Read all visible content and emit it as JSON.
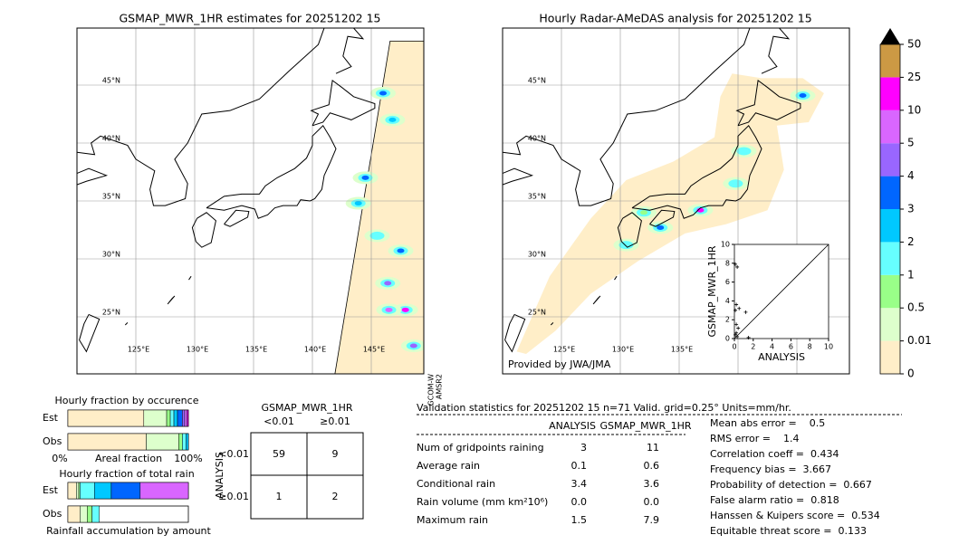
{
  "maps": [
    {
      "title": "GSMAP_MWR_1HR estimates for 20251202 15",
      "lat_labels": [
        "45°N",
        "40°N",
        "35°N",
        "30°N",
        "25°N"
      ],
      "lon_labels": [
        "125°E",
        "130°E",
        "135°E",
        "140°E",
        "145°E"
      ],
      "sensor_label": [
        "GCOM-W",
        "AMSR2"
      ]
    },
    {
      "title": "Hourly Radar-AMeDAS analysis for 20251202 15",
      "lat_labels": [
        "45°N",
        "40°N",
        "35°N",
        "30°N",
        "25°N"
      ],
      "lon_labels": [
        "125°E",
        "130°E",
        "135°E"
      ],
      "credit": "Provided by JWA/JMA"
    }
  ],
  "chart_data": [
    {
      "type": "colorbar",
      "ticks": [
        0,
        0.01,
        0.5,
        1,
        2,
        3,
        4,
        5,
        10,
        25,
        50
      ],
      "colors": [
        "#ffeec8",
        "#ddffcc",
        "#99ff88",
        "#66ffff",
        "#00c8ff",
        "#0066ff",
        "#9966ff",
        "#d966ff",
        "#ff00ff",
        "#cc9944"
      ],
      "extend_color": "#000000"
    },
    {
      "type": "scatter",
      "xlabel": "ANALYSIS",
      "ylabel": "GSMAP_MWR_1HR",
      "xlim": [
        0,
        10
      ],
      "ylim": [
        0,
        10
      ],
      "xticks": [
        0,
        2,
        4,
        6,
        8,
        10
      ],
      "yticks": [
        0,
        2,
        4,
        6,
        8,
        10
      ],
      "x": [
        0.1,
        0.3,
        0.2,
        0.1,
        0.5,
        1.2,
        0.2,
        0.4,
        0.1,
        0.3,
        1.5,
        0.2
      ],
      "y": [
        7.9,
        7.6,
        3.6,
        3.0,
        3.2,
        2.8,
        1.5,
        1.1,
        0.4,
        0.2,
        0.1,
        0.6
      ]
    },
    {
      "type": "stacked-bar",
      "title": "Hourly fraction by occurence",
      "categories": [
        "Est",
        "Obs"
      ],
      "xlabel": "Areal fraction",
      "xlim": [
        0,
        100
      ],
      "xticks": [
        {
          "value": 0,
          "label": "0%"
        },
        {
          "value": 100,
          "label": "100%"
        }
      ],
      "colors": [
        "#ffeec8",
        "#ddffcc",
        "#99ff88",
        "#66ffff",
        "#00c8ff",
        "#0066ff",
        "#9966ff",
        "#d966ff",
        "#ff00ff"
      ],
      "values": [
        [
          63,
          19,
          3,
          3,
          3,
          4,
          2,
          2,
          1
        ],
        [
          65,
          27,
          3,
          3,
          2
        ]
      ]
    },
    {
      "type": "stacked-bar",
      "title": "Hourly fraction of total rain",
      "categories": [
        "Est",
        "Obs"
      ],
      "xlabel": "Rainfall accumulation by amount",
      "xlim": [
        0,
        100
      ],
      "colors": [
        "#ffeec8",
        "#ddffcc",
        "#99ff88",
        "#66ffff",
        "#00c8ff",
        "#0066ff",
        "#9966ff",
        "#d966ff",
        "#ff00ff"
      ],
      "values": [
        [
          7,
          2,
          1,
          12,
          14,
          24,
          0,
          40
        ],
        [
          10,
          6,
          4,
          6
        ]
      ]
    }
  ],
  "contingency": {
    "title": "GSMAP_MWR_1HR",
    "col_labels": [
      "<0.01",
      "≥0.01"
    ],
    "row_title": "ANALYSIS",
    "row_labels": [
      "<0.01",
      "≥0.01"
    ],
    "cells": [
      [
        "59",
        "9"
      ],
      [
        "1",
        "2"
      ]
    ]
  },
  "stats": {
    "header": "Validation statistics for 20251202 15  n=71 Valid. grid=0.25° Units=mm/hr.",
    "columns": [
      "ANALYSIS",
      "GSMAP_MWR_1HR"
    ],
    "rows": [
      [
        "Num of gridpoints raining",
        "3",
        "11"
      ],
      [
        "Average rain",
        "0.1",
        "0.6"
      ],
      [
        "Conditional rain",
        "3.4",
        "3.6"
      ],
      [
        "Rain volume (mm km²10⁶)",
        "0.0",
        "0.0"
      ],
      [
        "Maximum rain",
        "1.5",
        "7.9"
      ]
    ],
    "scores": [
      "Mean abs error =    0.5",
      "RMS error =    1.4",
      "Correlation coeff =  0.434",
      "Frequency bias =  3.667",
      "Probability of detection =  0.667",
      "False alarm ratio =  0.818",
      "Hanssen & Kuipers score =  0.534",
      "Equitable threat score =  0.133"
    ]
  }
}
